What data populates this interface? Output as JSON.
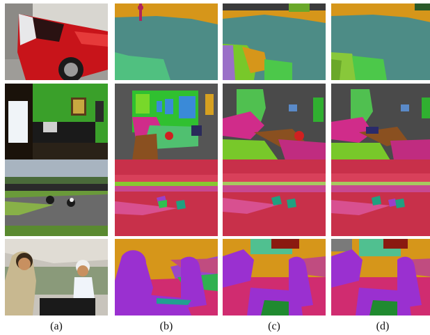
{
  "captions": [
    "(a)",
    "(b)",
    "(c)",
    "(d)"
  ],
  "rows": [
    {
      "scene": "car"
    },
    {
      "scene": "office"
    },
    {
      "scene": "motorcycles"
    },
    {
      "scene": "people"
    }
  ]
}
